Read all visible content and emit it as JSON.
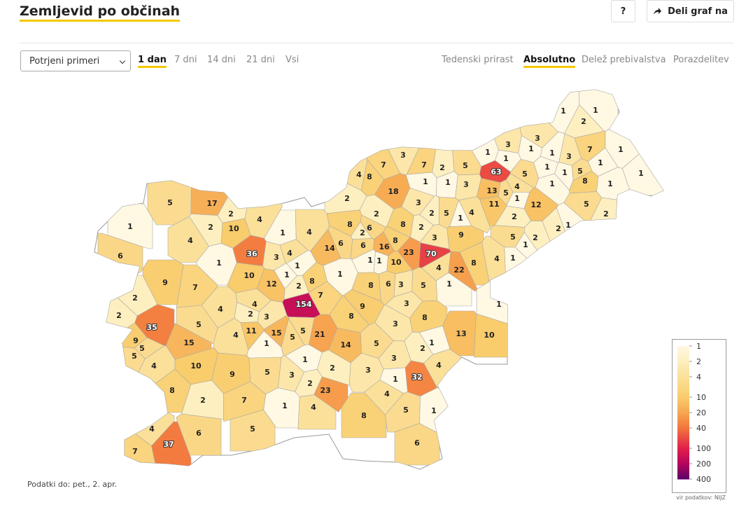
{
  "header": {
    "title": "Zemljevid po občinah",
    "help": "?",
    "share": "Deli graf na"
  },
  "controls": {
    "select": "Potrjeni primeri",
    "periods": [
      {
        "label": "1 dan",
        "active": true
      },
      {
        "label": "7 dni",
        "active": false
      },
      {
        "label": "14 dni",
        "active": false
      },
      {
        "label": "21 dni",
        "active": false
      },
      {
        "label": "Vsi",
        "active": false
      }
    ],
    "modes": [
      {
        "label": "Tedenski prirast",
        "active": false
      },
      {
        "label": "Absolutno",
        "active": true
      },
      {
        "label": "Delež prebivalstva",
        "active": false
      },
      {
        "label": "Porazdelitev",
        "active": false
      }
    ]
  },
  "map": {
    "values": [
      1,
      1,
      2,
      3,
      1,
      3,
      1,
      1,
      1,
      3,
      7,
      1,
      1,
      1,
      63,
      5,
      2,
      7,
      3,
      7,
      8,
      4,
      1,
      1,
      3,
      5,
      1,
      1,
      5,
      8,
      1,
      1,
      4,
      13,
      5,
      1,
      11,
      12,
      5,
      2,
      18,
      2,
      3,
      2,
      5,
      4,
      2,
      1,
      2,
      8,
      6,
      2,
      8,
      2,
      3,
      9,
      5,
      2,
      2,
      1,
      1,
      6,
      8,
      16,
      23,
      70,
      14,
      6,
      1,
      1,
      10,
      4,
      22,
      8,
      4,
      1,
      1,
      1,
      8,
      6,
      3,
      5,
      7,
      154,
      9,
      3,
      8,
      8,
      1,
      3,
      13,
      10,
      21,
      14,
      5,
      1,
      2,
      3,
      4,
      32,
      1,
      3,
      2,
      1,
      2,
      23,
      4,
      5,
      1,
      8,
      6,
      4,
      1,
      3,
      5,
      5,
      5,
      1,
      15,
      11,
      3,
      2,
      4,
      4,
      4,
      5,
      7,
      9,
      10,
      12,
      2,
      8,
      36,
      3,
      4,
      1,
      1,
      1,
      4,
      1,
      4,
      6,
      1,
      5,
      17,
      2,
      10,
      4,
      2,
      2,
      2,
      35,
      15,
      9,
      5,
      5,
      4,
      10,
      9,
      8,
      2,
      7,
      5,
      4,
      37,
      7,
      6
    ],
    "legend": {
      "ticks": [
        1,
        2,
        4,
        10,
        20,
        40,
        100,
        200,
        400
      ],
      "colors": [
        "#fff8e3",
        "#fdefbf",
        "#fbe09a",
        "#f9cc6c",
        "#f7a650",
        "#f2763d",
        "#e1204a",
        "#b7045f",
        "#5b0468"
      ],
      "scale": "log"
    },
    "source": "vir podatkov: NIJZ"
  },
  "footnote": "Podatki do: pet., 2. apr."
}
